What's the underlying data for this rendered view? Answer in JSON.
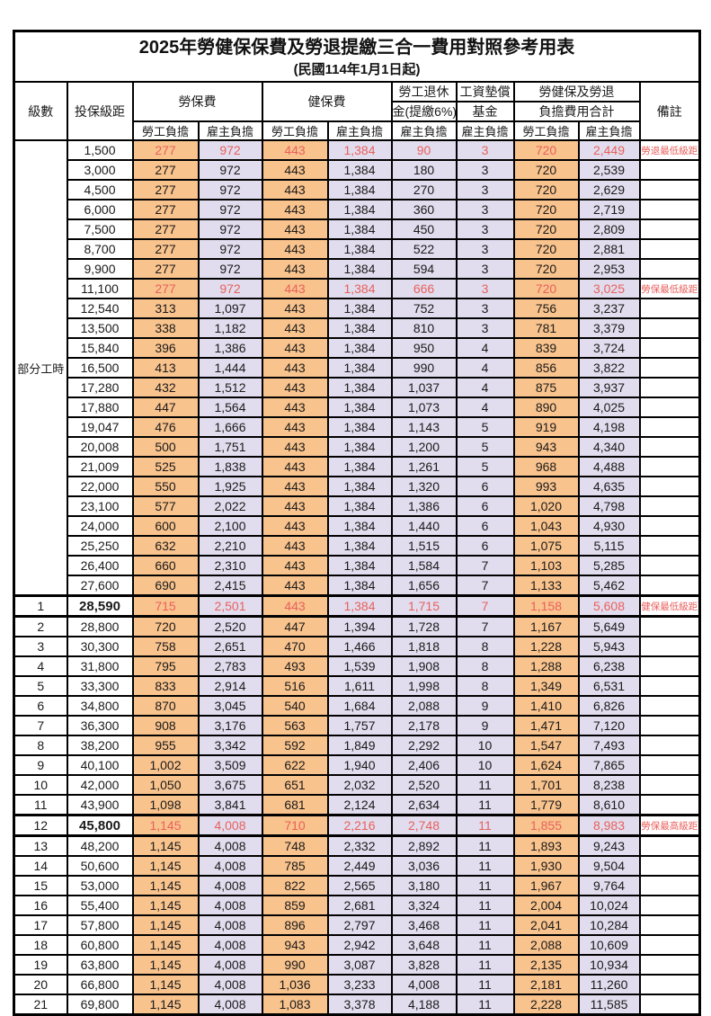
{
  "page": {
    "title": "2025年勞健保保費及勞退提繳三合一費用對照參考用表",
    "subtitle": "(民國114年1月1日起)"
  },
  "header": {
    "level": "級數",
    "bracket": "投保級距",
    "labor_insurance": "勞保費",
    "health_insurance": "健保費",
    "pension_line1": "勞工退休",
    "pension_line2": "金(提繳6%)",
    "wage_fund_line1": "工資墊償",
    "wage_fund_line2": "基金",
    "total_line1": "勞健保及勞退",
    "total_line2": "負擔費用合計",
    "employee": "勞工負擔",
    "employer": "雇主負擔",
    "remark": "備註"
  },
  "colors": {
    "employee_bg": "#F9C38D",
    "employer_bg": "#E1DDEE",
    "highlight_text": "#E8605C",
    "border": "#000000"
  },
  "table": {
    "group_label": "部分工時",
    "rows": [
      {
        "bracket": "1,500",
        "values": [
          "277",
          "972",
          "443",
          "1,384",
          "90",
          "3",
          "720",
          "2,449"
        ],
        "remark": "勞退最低級距",
        "red": true
      },
      {
        "bracket": "3,000",
        "values": [
          "277",
          "972",
          "443",
          "1,384",
          "180",
          "3",
          "720",
          "2,539"
        ]
      },
      {
        "bracket": "4,500",
        "values": [
          "277",
          "972",
          "443",
          "1,384",
          "270",
          "3",
          "720",
          "2,629"
        ]
      },
      {
        "bracket": "6,000",
        "values": [
          "277",
          "972",
          "443",
          "1,384",
          "360",
          "3",
          "720",
          "2,719"
        ]
      },
      {
        "bracket": "7,500",
        "values": [
          "277",
          "972",
          "443",
          "1,384",
          "450",
          "3",
          "720",
          "2,809"
        ]
      },
      {
        "bracket": "8,700",
        "values": [
          "277",
          "972",
          "443",
          "1,384",
          "522",
          "3",
          "720",
          "2,881"
        ]
      },
      {
        "bracket": "9,900",
        "values": [
          "277",
          "972",
          "443",
          "1,384",
          "594",
          "3",
          "720",
          "2,953"
        ]
      },
      {
        "bracket": "11,100",
        "values": [
          "277",
          "972",
          "443",
          "1,384",
          "666",
          "3",
          "720",
          "3,025"
        ],
        "remark": "勞保最低級距",
        "red": true
      },
      {
        "bracket": "12,540",
        "values": [
          "313",
          "1,097",
          "443",
          "1,384",
          "752",
          "3",
          "756",
          "3,237"
        ]
      },
      {
        "bracket": "13,500",
        "values": [
          "338",
          "1,182",
          "443",
          "1,384",
          "810",
          "3",
          "781",
          "3,379"
        ]
      },
      {
        "bracket": "15,840",
        "values": [
          "396",
          "1,386",
          "443",
          "1,384",
          "950",
          "4",
          "839",
          "3,724"
        ]
      },
      {
        "bracket": "16,500",
        "values": [
          "413",
          "1,444",
          "443",
          "1,384",
          "990",
          "4",
          "856",
          "3,822"
        ]
      },
      {
        "bracket": "17,280",
        "values": [
          "432",
          "1,512",
          "443",
          "1,384",
          "1,037",
          "4",
          "875",
          "3,937"
        ]
      },
      {
        "bracket": "17,880",
        "values": [
          "447",
          "1,564",
          "443",
          "1,384",
          "1,073",
          "4",
          "890",
          "4,025"
        ]
      },
      {
        "bracket": "19,047",
        "values": [
          "476",
          "1,666",
          "443",
          "1,384",
          "1,143",
          "5",
          "919",
          "4,198"
        ]
      },
      {
        "bracket": "20,008",
        "values": [
          "500",
          "1,751",
          "443",
          "1,384",
          "1,200",
          "5",
          "943",
          "4,340"
        ]
      },
      {
        "bracket": "21,009",
        "values": [
          "525",
          "1,838",
          "443",
          "1,384",
          "1,261",
          "5",
          "968",
          "4,488"
        ]
      },
      {
        "bracket": "22,000",
        "values": [
          "550",
          "1,925",
          "443",
          "1,384",
          "1,320",
          "6",
          "993",
          "4,635"
        ]
      },
      {
        "bracket": "23,100",
        "values": [
          "577",
          "2,022",
          "443",
          "1,384",
          "1,386",
          "6",
          "1,020",
          "4,798"
        ]
      },
      {
        "bracket": "24,000",
        "values": [
          "600",
          "2,100",
          "443",
          "1,384",
          "1,440",
          "6",
          "1,043",
          "4,930"
        ]
      },
      {
        "bracket": "25,250",
        "values": [
          "632",
          "2,210",
          "443",
          "1,384",
          "1,515",
          "6",
          "1,075",
          "5,115"
        ]
      },
      {
        "bracket": "26,400",
        "values": [
          "660",
          "2,310",
          "443",
          "1,384",
          "1,584",
          "7",
          "1,103",
          "5,285"
        ]
      },
      {
        "bracket": "27,600",
        "values": [
          "690",
          "2,415",
          "443",
          "1,384",
          "1,656",
          "7",
          "1,133",
          "5,462"
        ]
      },
      {
        "level": "1",
        "bracket": "28,590",
        "values": [
          "715",
          "2,501",
          "443",
          "1,384",
          "1,715",
          "7",
          "1,158",
          "5,608"
        ],
        "remark": "健保最低級距",
        "red": true,
        "thick": true,
        "bold": true
      },
      {
        "level": "2",
        "bracket": "28,800",
        "values": [
          "720",
          "2,520",
          "447",
          "1,394",
          "1,728",
          "7",
          "1,167",
          "5,649"
        ]
      },
      {
        "level": "3",
        "bracket": "30,300",
        "values": [
          "758",
          "2,651",
          "470",
          "1,466",
          "1,818",
          "8",
          "1,228",
          "5,943"
        ]
      },
      {
        "level": "4",
        "bracket": "31,800",
        "values": [
          "795",
          "2,783",
          "493",
          "1,539",
          "1,908",
          "8",
          "1,288",
          "6,238"
        ]
      },
      {
        "level": "5",
        "bracket": "33,300",
        "values": [
          "833",
          "2,914",
          "516",
          "1,611",
          "1,998",
          "8",
          "1,349",
          "6,531"
        ]
      },
      {
        "level": "6",
        "bracket": "34,800",
        "values": [
          "870",
          "3,045",
          "540",
          "1,684",
          "2,088",
          "9",
          "1,410",
          "6,826"
        ]
      },
      {
        "level": "7",
        "bracket": "36,300",
        "values": [
          "908",
          "3,176",
          "563",
          "1,757",
          "2,178",
          "9",
          "1,471",
          "7,120"
        ]
      },
      {
        "level": "8",
        "bracket": "38,200",
        "values": [
          "955",
          "3,342",
          "592",
          "1,849",
          "2,292",
          "10",
          "1,547",
          "7,493"
        ]
      },
      {
        "level": "9",
        "bracket": "40,100",
        "values": [
          "1,002",
          "3,509",
          "622",
          "1,940",
          "2,406",
          "10",
          "1,624",
          "7,865"
        ]
      },
      {
        "level": "10",
        "bracket": "42,000",
        "values": [
          "1,050",
          "3,675",
          "651",
          "2,032",
          "2,520",
          "11",
          "1,701",
          "8,238"
        ]
      },
      {
        "level": "11",
        "bracket": "43,900",
        "values": [
          "1,098",
          "3,841",
          "681",
          "2,124",
          "2,634",
          "11",
          "1,779",
          "8,610"
        ]
      },
      {
        "level": "12",
        "bracket": "45,800",
        "values": [
          "1,145",
          "4,008",
          "710",
          "2,216",
          "2,748",
          "11",
          "1,855",
          "8,983"
        ],
        "remark": "勞保最高級距",
        "red": true,
        "thick": true,
        "bold": true
      },
      {
        "level": "13",
        "bracket": "48,200",
        "values": [
          "1,145",
          "4,008",
          "748",
          "2,332",
          "2,892",
          "11",
          "1,893",
          "9,243"
        ]
      },
      {
        "level": "14",
        "bracket": "50,600",
        "values": [
          "1,145",
          "4,008",
          "785",
          "2,449",
          "3,036",
          "11",
          "1,930",
          "9,504"
        ]
      },
      {
        "level": "15",
        "bracket": "53,000",
        "values": [
          "1,145",
          "4,008",
          "822",
          "2,565",
          "3,180",
          "11",
          "1,967",
          "9,764"
        ]
      },
      {
        "level": "16",
        "bracket": "55,400",
        "values": [
          "1,145",
          "4,008",
          "859",
          "2,681",
          "3,324",
          "11",
          "2,004",
          "10,024"
        ]
      },
      {
        "level": "17",
        "bracket": "57,800",
        "values": [
          "1,145",
          "4,008",
          "896",
          "2,797",
          "3,468",
          "11",
          "2,041",
          "10,284"
        ]
      },
      {
        "level": "18",
        "bracket": "60,800",
        "values": [
          "1,145",
          "4,008",
          "943",
          "2,942",
          "3,648",
          "11",
          "2,088",
          "10,609"
        ]
      },
      {
        "level": "19",
        "bracket": "63,800",
        "values": [
          "1,145",
          "4,008",
          "990",
          "3,087",
          "3,828",
          "11",
          "2,135",
          "10,934"
        ]
      },
      {
        "level": "20",
        "bracket": "66,800",
        "values": [
          "1,145",
          "4,008",
          "1,036",
          "3,233",
          "4,008",
          "11",
          "2,181",
          "11,260"
        ]
      },
      {
        "level": "21",
        "bracket": "69,800",
        "values": [
          "1,145",
          "4,008",
          "1,083",
          "3,378",
          "4,188",
          "11",
          "2,228",
          "11,585"
        ]
      }
    ]
  }
}
